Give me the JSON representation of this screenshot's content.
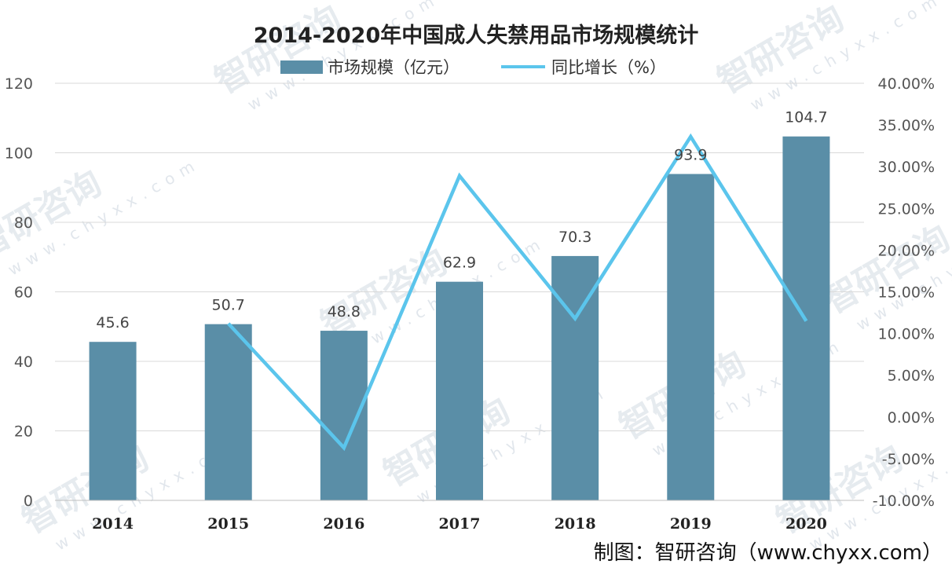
{
  "chart_data": {
    "type": "bar",
    "title": "2014-2020年中国成人失禁用品市场规模统计",
    "categories": [
      "2014",
      "2015",
      "2016",
      "2017",
      "2018",
      "2019",
      "2020"
    ],
    "series": [
      {
        "name": "市场规模（亿元）",
        "type": "bar",
        "axis": "left",
        "values": [
          45.6,
          50.7,
          48.8,
          62.9,
          70.3,
          93.9,
          104.7
        ],
        "data_labels": [
          "45.6",
          "50.7",
          "48.8",
          "62.9",
          "70.3",
          "93.9",
          "104.7"
        ],
        "color": "#5a8ea7"
      },
      {
        "name": "同比增长（%）",
        "type": "line",
        "axis": "right",
        "values": [
          null,
          11.2,
          -3.7,
          28.9,
          11.8,
          33.6,
          11.5
        ],
        "color": "#5bc5ec"
      }
    ],
    "y_left": {
      "ylim": [
        0,
        120
      ],
      "ticks": [
        "0",
        "20",
        "40",
        "60",
        "80",
        "100",
        "120"
      ]
    },
    "y_right": {
      "ylim": [
        -10,
        40
      ],
      "ticks": [
        "-10.00%",
        "-5.00%",
        "0.00%",
        "5.00%",
        "10.00%",
        "15.00%",
        "20.00%",
        "25.00%",
        "30.00%",
        "35.00%",
        "40.00%"
      ]
    },
    "grid": true,
    "legend_position": "top"
  },
  "credit": "制图：智研咨询（www.chyxx.com）",
  "watermark": {
    "brand": "智研咨询",
    "url": "www.chyxx.com"
  }
}
